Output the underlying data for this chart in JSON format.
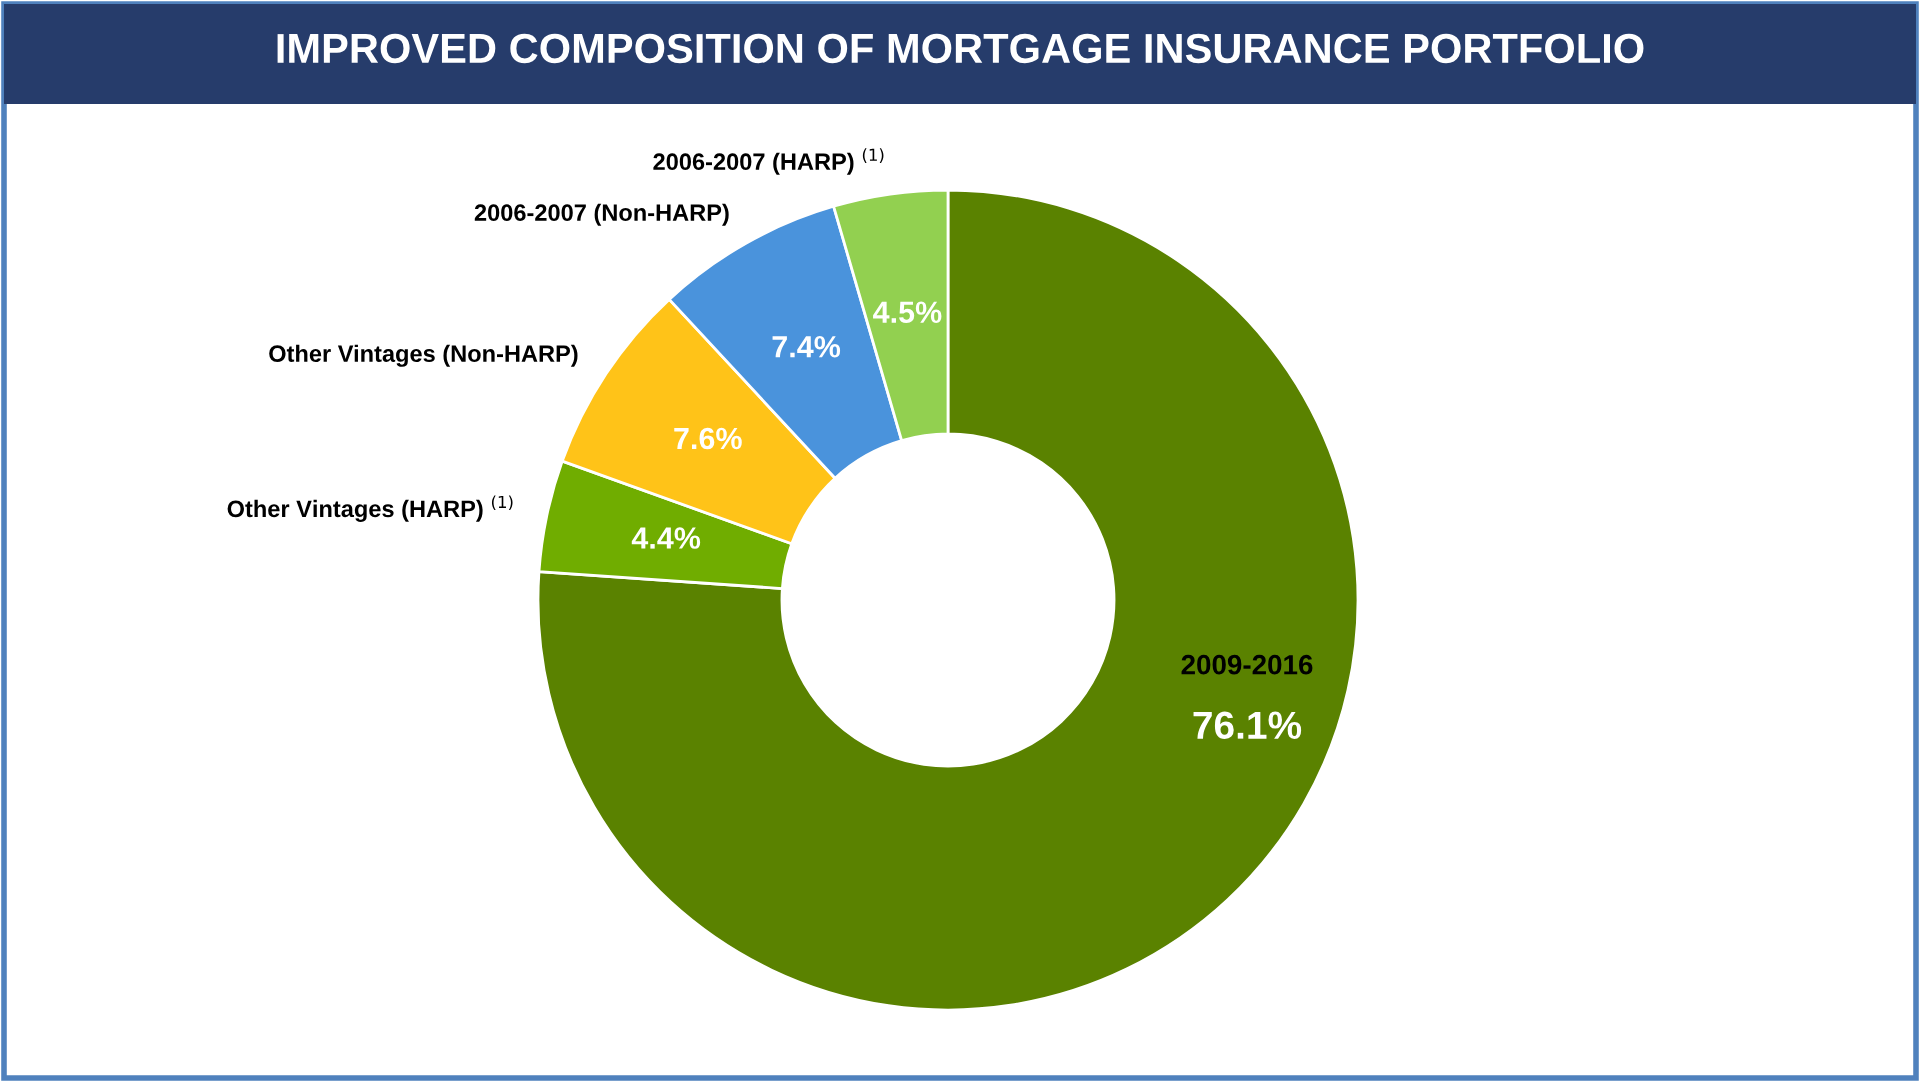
{
  "chart_data": {
    "type": "donut",
    "title": "IMPROVED COMPOSITION OF MORTGAGE INSURANCE PORTFOLIO",
    "categories": [
      "2009-2016",
      "Other Vintages (HARP) $^{(1)}$",
      "Other Vintages (Non-HARP)",
      "2006-2007 (Non-HARP)",
      "2006-2007 (HARP) $^{(1)}$"
    ],
    "values": [
      76.1,
      4.4,
      7.6,
      7.4,
      4.5
    ],
    "value_labels": [
      "76.1%",
      "4.4%",
      "7.6%",
      "7.4%",
      "4.5%"
    ],
    "colors": [
      "#5a8200",
      "#70ad00",
      "#ffc318",
      "#4a93dc",
      "#92d050"
    ],
    "legend": false
  }
}
